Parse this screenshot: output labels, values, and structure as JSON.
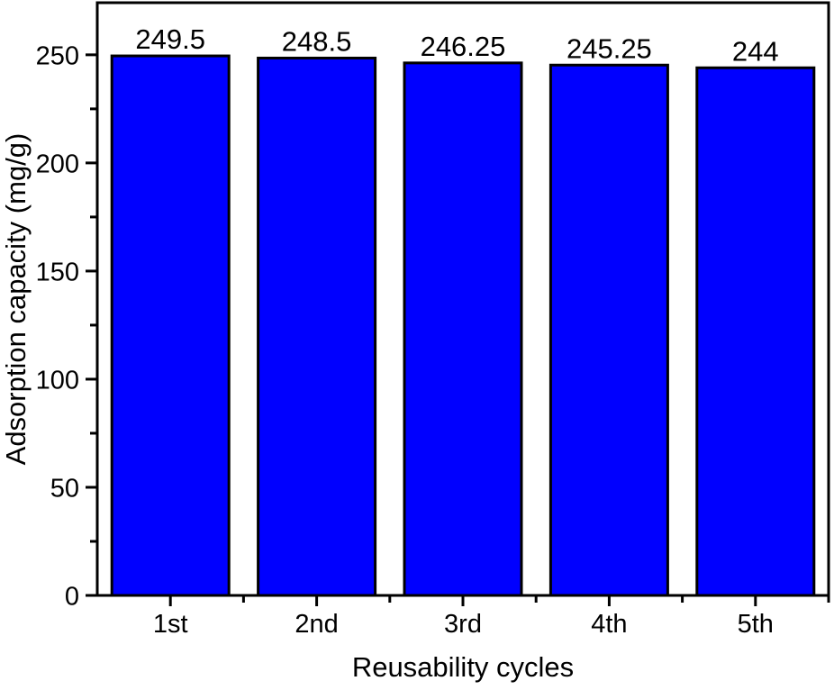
{
  "chart_data": {
    "type": "bar",
    "title": "",
    "categories": [
      "1st",
      "2nd",
      "3rd",
      "4th",
      "5th"
    ],
    "values": [
      249.5,
      248.5,
      246.25,
      245.25,
      244
    ],
    "value_labels": [
      "249.5",
      "248.5",
      "246.25",
      "245.25",
      "244"
    ],
    "xlabel": "Reusability cycles",
    "ylabel": "Adsorption capacity (mg/g)",
    "ylim": [
      0,
      274.1
    ],
    "yticks_major": [
      0,
      50,
      100,
      150,
      200,
      250
    ],
    "yticks_minor": [
      25,
      75,
      125,
      175,
      225
    ],
    "bar_color": "#0000ff",
    "bar_border_color": "#000000",
    "axis_color": "#000000",
    "legend": "none",
    "grid": false
  }
}
